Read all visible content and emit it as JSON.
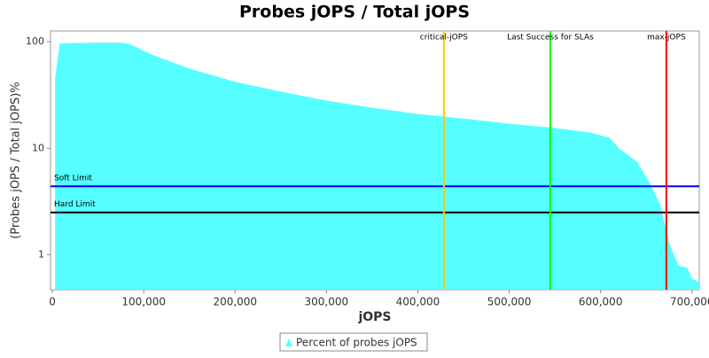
{
  "chart_data": {
    "type": "area",
    "title": "Probes jOPS / Total jOPS",
    "x_label": "jOPS",
    "y_label": "(Probes jOPS / Total jOPS)%",
    "y_log_scale": true,
    "xlim": [
      -2000,
      708000
    ],
    "ylim": [
      0.47,
      126
    ],
    "xticks": [
      0,
      {
        "value": 100000,
        "label": "100,000"
      },
      {
        "value": 200000,
        "label": "200,000"
      },
      {
        "value": 300000,
        "label": "300,000"
      },
      {
        "value": 400000,
        "label": "400,000"
      },
      {
        "value": 500000,
        "label": "500,000"
      },
      {
        "value": 600000,
        "label": "600,000"
      },
      {
        "value": 700000,
        "label": "700,000"
      }
    ],
    "yticks": [
      1,
      10,
      100
    ],
    "series": [
      {
        "name": "Percent of probes jOPS",
        "color": "#55ffff",
        "x": [
          3000,
          8000,
          20000,
          50000,
          75000,
          85000,
          110000,
          150000,
          200000,
          250000,
          300000,
          350000,
          400000,
          450000,
          500000,
          550000,
          590000,
          610000,
          620000,
          640000,
          655000,
          665000,
          675000,
          685000,
          695000,
          700000,
          708000
        ],
        "values": [
          45,
          96,
          97,
          98,
          98,
          95,
          75,
          56,
          42,
          34,
          28,
          24,
          21,
          19,
          17,
          15.5,
          14,
          12.5,
          10,
          7.5,
          4.5,
          3,
          1.3,
          0.8,
          0.75,
          0.6,
          0.55
        ]
      }
    ],
    "markers": [
      {
        "label": "critical-jOPS",
        "value": 428500,
        "color": "#ffc800"
      },
      {
        "label": "Last Success for SLAs",
        "value": 545000,
        "color": "#00ff00"
      },
      {
        "label": "max-jOPS",
        "value": 672000,
        "color": "#ff0000"
      }
    ],
    "limits": [
      {
        "label": "Soft Limit",
        "value": 4.4,
        "color": "#0000ff"
      },
      {
        "label": "Hard Limit",
        "value": 2.5,
        "color": "#000000"
      }
    ]
  }
}
